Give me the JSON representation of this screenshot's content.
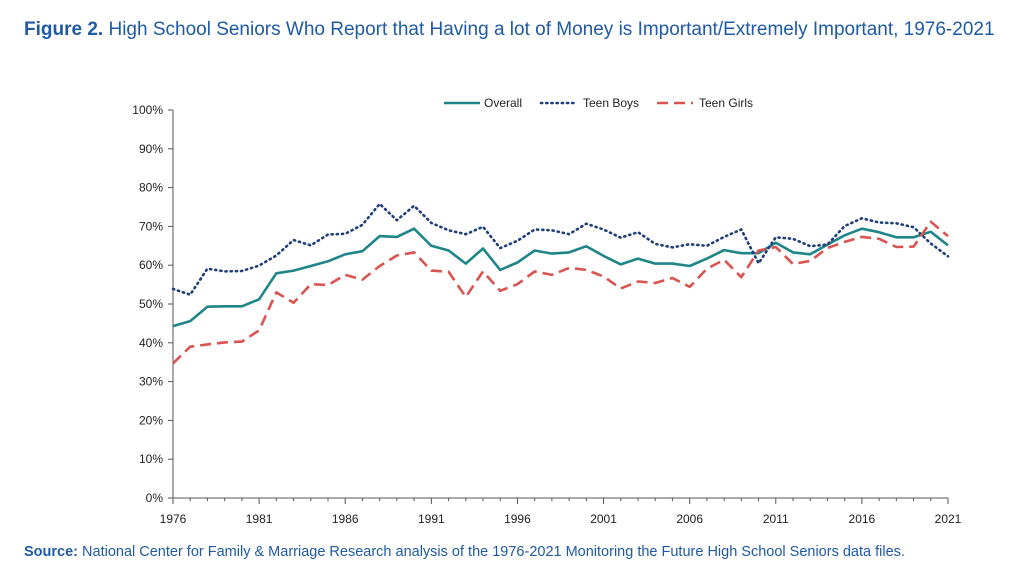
{
  "figure": {
    "label": "Figure 2.",
    "title": "High School Seniors Who Report that Having a lot of Money is Important/Extremely Important, 1976-2021"
  },
  "source": {
    "label": "Source:",
    "text": "National Center for Family & Marriage Research analysis of the 1976-2021 Monitoring the Future High School Seniors data files."
  },
  "colors": {
    "title": "#1f5aa6",
    "overall": "#1e8589",
    "boys": "#1f3f7a",
    "girls": "#d9534f",
    "axis": "#555555"
  },
  "chart_data": {
    "type": "line",
    "title": "",
    "xlabel": "",
    "ylabel": "",
    "x": [
      1976,
      1977,
      1978,
      1979,
      1980,
      1981,
      1982,
      1983,
      1984,
      1985,
      1986,
      1987,
      1988,
      1989,
      1990,
      1991,
      1992,
      1993,
      1994,
      1995,
      1996,
      1997,
      1998,
      1999,
      2000,
      2001,
      2002,
      2003,
      2004,
      2005,
      2006,
      2007,
      2008,
      2009,
      2010,
      2011,
      2012,
      2013,
      2014,
      2015,
      2016,
      2017,
      2018,
      2019,
      2020,
      2021
    ],
    "x_tick_labels": [
      "1976",
      "1981",
      "1986",
      "1991",
      "1996",
      "2001",
      "2006",
      "2011",
      "2016",
      "2021"
    ],
    "y_tick_labels": [
      "0%",
      "10%",
      "20%",
      "30%",
      "40%",
      "50%",
      "60%",
      "70%",
      "80%",
      "90%",
      "100%"
    ],
    "ylim": [
      0,
      100
    ],
    "grid": false,
    "legend_position": "top",
    "series": [
      {
        "name": "Overall",
        "style": "solid",
        "color": "#1e8589",
        "values": [
          44.3,
          45.6,
          49.3,
          49.4,
          49.4,
          51.2,
          57.9,
          58.6,
          59.8,
          61.0,
          62.8,
          63.6,
          67.5,
          67.3,
          69.4,
          65.0,
          63.8,
          60.4,
          64.3,
          58.8,
          60.7,
          63.8,
          63.0,
          63.3,
          64.9,
          62.4,
          60.2,
          61.7,
          60.4,
          60.4,
          59.8,
          61.7,
          63.9,
          63.1,
          63.1,
          65.8,
          63.3,
          62.8,
          65.3,
          67.7,
          69.4,
          68.5,
          67.2,
          67.2,
          68.6,
          65.1
        ]
      },
      {
        "name": "Teen Boys",
        "style": "dotted",
        "color": "#1f3f7a",
        "values": [
          53.9,
          52.4,
          59.1,
          58.4,
          58.5,
          59.9,
          62.5,
          66.5,
          65.1,
          67.9,
          68.1,
          70.4,
          75.8,
          71.6,
          75.3,
          70.9,
          69.0,
          68.0,
          69.9,
          64.4,
          66.3,
          69.2,
          69.0,
          68.0,
          70.7,
          69.2,
          67.1,
          68.5,
          65.5,
          64.6,
          65.4,
          65.0,
          67.3,
          69.2,
          60.5,
          67.2,
          66.8,
          64.9,
          65.3,
          70.1,
          72.1,
          71.0,
          70.8,
          69.8,
          65.6,
          62.3
        ]
      },
      {
        "name": "Teen Girls",
        "style": "dashed",
        "color": "#d9534f",
        "values": [
          34.7,
          39.0,
          39.6,
          40.1,
          40.3,
          43.2,
          53.0,
          50.3,
          55.1,
          54.9,
          57.5,
          56.3,
          59.8,
          62.5,
          63.3,
          58.6,
          58.3,
          51.8,
          58.4,
          53.4,
          55.1,
          58.4,
          57.5,
          59.3,
          58.8,
          57.1,
          54.0,
          55.8,
          55.4,
          56.7,
          54.4,
          59.1,
          61.4,
          56.9,
          63.8,
          64.7,
          60.3,
          61.1,
          64.4,
          66.0,
          67.3,
          66.8,
          64.7,
          64.8,
          71.2,
          67.5
        ]
      }
    ]
  }
}
